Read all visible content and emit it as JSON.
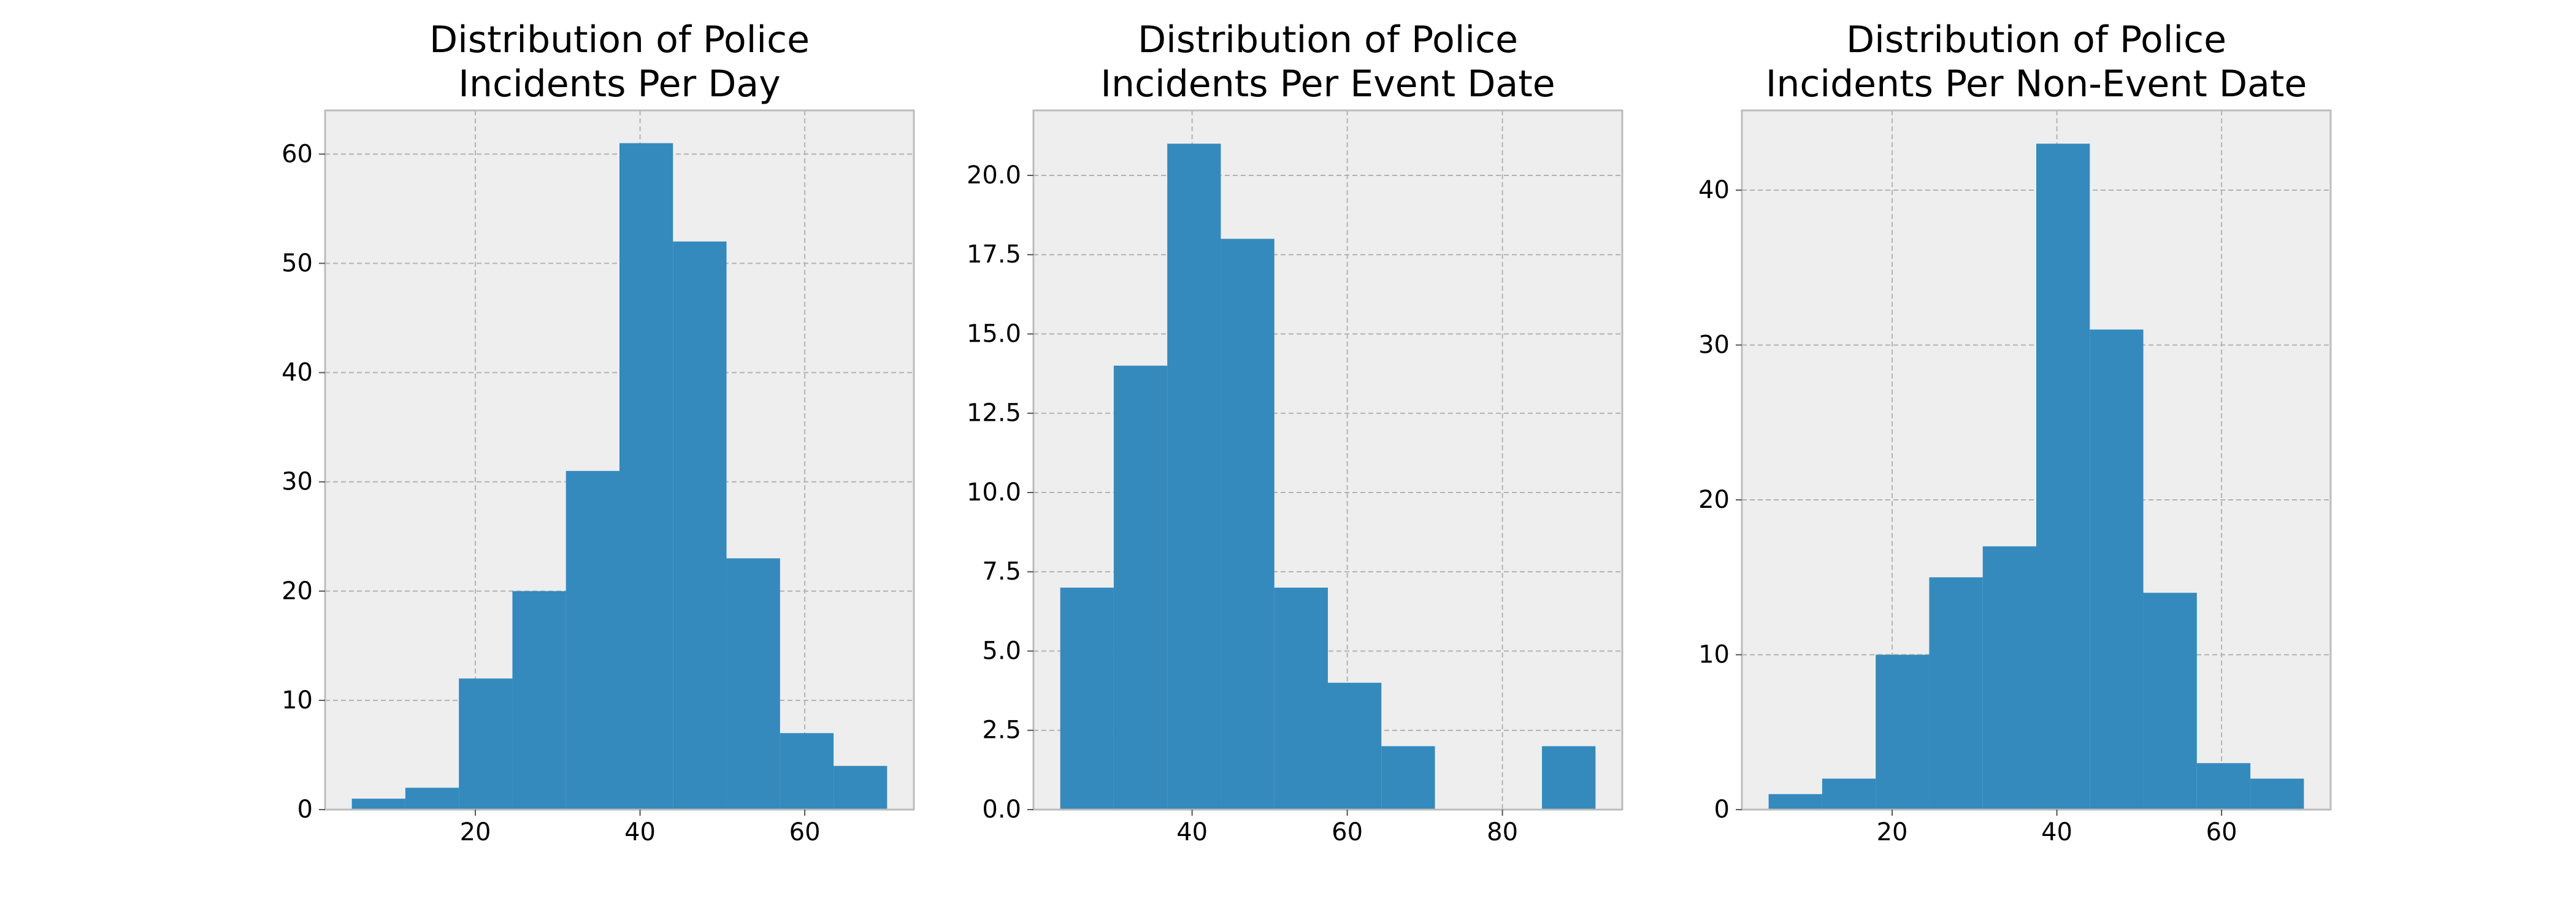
{
  "chart_data": [
    {
      "type": "bar",
      "title": [
        "Distribution of Police",
        "Incidents Per Day"
      ],
      "bins": [
        {
          "x0": 5.0,
          "x1": 11.5,
          "count": 1
        },
        {
          "x0": 11.5,
          "x1": 18.0,
          "count": 2
        },
        {
          "x0": 18.0,
          "x1": 24.5,
          "count": 12
        },
        {
          "x0": 24.5,
          "x1": 31.0,
          "count": 20
        },
        {
          "x0": 31.0,
          "x1": 37.5,
          "count": 31
        },
        {
          "x0": 37.5,
          "x1": 44.0,
          "count": 61
        },
        {
          "x0": 44.0,
          "x1": 50.5,
          "count": 52
        },
        {
          "x0": 50.5,
          "x1": 57.0,
          "count": 23
        },
        {
          "x0": 57.0,
          "x1": 63.5,
          "count": 7
        },
        {
          "x0": 63.5,
          "x1": 70.0,
          "count": 4
        }
      ],
      "xlim": [
        1.75,
        73.25
      ],
      "ylim": [
        0,
        64
      ],
      "xticks": [
        20,
        40,
        60
      ],
      "yticks": [
        0,
        10,
        20,
        30,
        40,
        50,
        60
      ],
      "ytick_labels": [
        "0",
        "10",
        "20",
        "30",
        "40",
        "50",
        "60"
      ],
      "xlabel": "",
      "ylabel": "",
      "grid": true
    },
    {
      "type": "bar",
      "title": [
        "Distribution of Police",
        "Incidents Per Event Date"
      ],
      "bins": [
        {
          "x0": 23.0,
          "x1": 29.9,
          "count": 7
        },
        {
          "x0": 29.9,
          "x1": 36.8,
          "count": 14
        },
        {
          "x0": 36.8,
          "x1": 43.7,
          "count": 21
        },
        {
          "x0": 43.7,
          "x1": 50.6,
          "count": 18
        },
        {
          "x0": 50.6,
          "x1": 57.5,
          "count": 7
        },
        {
          "x0": 57.5,
          "x1": 64.4,
          "count": 4
        },
        {
          "x0": 64.4,
          "x1": 71.3,
          "count": 2
        },
        {
          "x0": 71.3,
          "x1": 78.2,
          "count": 0
        },
        {
          "x0": 78.2,
          "x1": 85.1,
          "count": 0
        },
        {
          "x0": 85.1,
          "x1": 92.0,
          "count": 2
        }
      ],
      "xlim": [
        19.55,
        95.45
      ],
      "ylim": [
        0,
        22.05
      ],
      "xticks": [
        40,
        60,
        80
      ],
      "yticks": [
        0,
        2.5,
        5,
        7.5,
        10,
        12.5,
        15,
        17.5,
        20
      ],
      "ytick_labels": [
        "0.0",
        "2.5",
        "5.0",
        "7.5",
        "10.0",
        "12.5",
        "15.0",
        "17.5",
        "20.0"
      ],
      "xlabel": "",
      "ylabel": "",
      "grid": true
    },
    {
      "type": "bar",
      "title": [
        "Distribution of Police",
        "Incidents Per Non-Event Date"
      ],
      "bins": [
        {
          "x0": 5.0,
          "x1": 11.5,
          "count": 1
        },
        {
          "x0": 11.5,
          "x1": 18.0,
          "count": 2
        },
        {
          "x0": 18.0,
          "x1": 24.5,
          "count": 10
        },
        {
          "x0": 24.5,
          "x1": 31.0,
          "count": 15
        },
        {
          "x0": 31.0,
          "x1": 37.5,
          "count": 17
        },
        {
          "x0": 37.5,
          "x1": 44.0,
          "count": 43
        },
        {
          "x0": 44.0,
          "x1": 50.5,
          "count": 31
        },
        {
          "x0": 50.5,
          "x1": 57.0,
          "count": 14
        },
        {
          "x0": 57.0,
          "x1": 63.5,
          "count": 3
        },
        {
          "x0": 63.5,
          "x1": 70.0,
          "count": 2
        }
      ],
      "xlim": [
        1.75,
        73.25
      ],
      "ylim": [
        0,
        45.15
      ],
      "xticks": [
        20,
        40,
        60
      ],
      "yticks": [
        0,
        10,
        20,
        30,
        40
      ],
      "ytick_labels": [
        "0",
        "10",
        "20",
        "30",
        "40"
      ],
      "xlabel": "",
      "ylabel": "",
      "grid": true
    }
  ],
  "colors": {
    "bar": "#348abd",
    "axes_background": "#eeeeee",
    "grid": "#b2b2b2",
    "spine": "#bcbcbc",
    "tick_text": "#000000"
  }
}
